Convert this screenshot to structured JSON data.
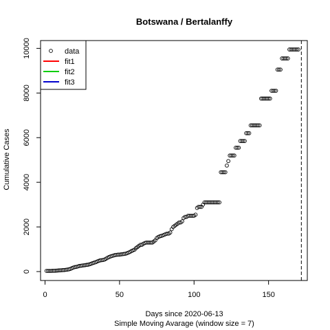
{
  "chart_data": {
    "type": "scatter",
    "title": "Botswana / Bertalanffy",
    "xlabel": "Days since 2020-06-13",
    "sublabel": "Simple Moving Avarage (window size = 7)",
    "ylabel": "Cumulative Cases",
    "xlim": [
      -3,
      176
    ],
    "ylim": [
      -400,
      10350
    ],
    "xticks": [
      0,
      50,
      100,
      150
    ],
    "yticks": [
      0,
      2000,
      4000,
      6000,
      8000,
      10000
    ],
    "vline_x": 172,
    "legend": {
      "position": "top-left",
      "entries": [
        {
          "label": "data",
          "kind": "point",
          "color": "#000000"
        },
        {
          "label": "fit1",
          "kind": "line",
          "color": "#ff0000"
        },
        {
          "label": "fit2",
          "kind": "line",
          "color": "#00cd00"
        },
        {
          "label": "fit3",
          "kind": "line",
          "color": "#0000cd"
        }
      ]
    },
    "series": [
      {
        "points": [
          [
            1,
            30
          ],
          [
            2,
            30
          ],
          [
            3,
            30
          ],
          [
            4,
            30
          ],
          [
            5,
            35
          ],
          [
            6,
            35
          ],
          [
            7,
            40
          ],
          [
            8,
            45
          ],
          [
            9,
            50
          ],
          [
            10,
            55
          ],
          [
            11,
            60
          ],
          [
            12,
            65
          ],
          [
            13,
            70
          ],
          [
            14,
            80
          ],
          [
            15,
            90
          ],
          [
            16,
            100
          ],
          [
            17,
            120
          ],
          [
            18,
            150
          ],
          [
            19,
            180
          ],
          [
            20,
            200
          ],
          [
            21,
            210
          ],
          [
            22,
            230
          ],
          [
            23,
            250
          ],
          [
            24,
            260
          ],
          [
            25,
            270
          ],
          [
            26,
            280
          ],
          [
            27,
            290
          ],
          [
            28,
            300
          ],
          [
            29,
            310
          ],
          [
            30,
            330
          ],
          [
            31,
            350
          ],
          [
            32,
            380
          ],
          [
            33,
            400
          ],
          [
            34,
            420
          ],
          [
            35,
            450
          ],
          [
            36,
            480
          ],
          [
            37,
            500
          ],
          [
            38,
            510
          ],
          [
            39,
            520
          ],
          [
            40,
            540
          ],
          [
            41,
            580
          ],
          [
            42,
            620
          ],
          [
            43,
            650
          ],
          [
            44,
            680
          ],
          [
            45,
            700
          ],
          [
            46,
            720
          ],
          [
            47,
            740
          ],
          [
            48,
            750
          ],
          [
            49,
            760
          ],
          [
            50,
            760
          ],
          [
            51,
            770
          ],
          [
            52,
            780
          ],
          [
            53,
            790
          ],
          [
            54,
            800
          ],
          [
            55,
            820
          ],
          [
            56,
            850
          ],
          [
            57,
            880
          ],
          [
            58,
            920
          ],
          [
            59,
            950
          ],
          [
            60,
            980
          ],
          [
            61,
            1050
          ],
          [
            62,
            1100
          ],
          [
            63,
            1150
          ],
          [
            64,
            1200
          ],
          [
            65,
            1200
          ],
          [
            66,
            1250
          ],
          [
            67,
            1280
          ],
          [
            68,
            1300
          ],
          [
            69,
            1300
          ],
          [
            70,
            1300
          ],
          [
            71,
            1300
          ],
          [
            72,
            1300
          ],
          [
            73,
            1350
          ],
          [
            74,
            1400
          ],
          [
            75,
            1500
          ],
          [
            76,
            1550
          ],
          [
            77,
            1580
          ],
          [
            78,
            1600
          ],
          [
            79,
            1620
          ],
          [
            80,
            1650
          ],
          [
            81,
            1680
          ],
          [
            82,
            1700
          ],
          [
            83,
            1700
          ],
          [
            84,
            1750
          ],
          [
            85,
            1900
          ],
          [
            86,
            2000
          ],
          [
            87,
            2050
          ],
          [
            88,
            2100
          ],
          [
            89,
            2150
          ],
          [
            90,
            2200
          ],
          [
            91,
            2200
          ],
          [
            92,
            2250
          ],
          [
            93,
            2400
          ],
          [
            94,
            2450
          ],
          [
            95,
            2450
          ],
          [
            96,
            2500
          ],
          [
            97,
            2500
          ],
          [
            98,
            2500
          ],
          [
            99,
            2500
          ],
          [
            100,
            2500
          ],
          [
            101,
            2550
          ],
          [
            102,
            2850
          ],
          [
            103,
            2900
          ],
          [
            104,
            2900
          ],
          [
            105,
            2900
          ],
          [
            106,
            3000
          ],
          [
            107,
            3100
          ],
          [
            108,
            3100
          ],
          [
            109,
            3100
          ],
          [
            110,
            3100
          ],
          [
            111,
            3100
          ],
          [
            112,
            3100
          ],
          [
            113,
            3100
          ],
          [
            114,
            3100
          ],
          [
            115,
            3100
          ],
          [
            116,
            3100
          ],
          [
            117,
            3100
          ],
          [
            118,
            4450
          ],
          [
            119,
            4450
          ],
          [
            120,
            4450
          ],
          [
            121,
            4450
          ],
          [
            122,
            4750
          ],
          [
            123,
            4950
          ],
          [
            124,
            5200
          ],
          [
            125,
            5200
          ],
          [
            126,
            5200
          ],
          [
            127,
            5200
          ],
          [
            128,
            5550
          ],
          [
            129,
            5550
          ],
          [
            130,
            5550
          ],
          [
            131,
            5850
          ],
          [
            132,
            5850
          ],
          [
            133,
            5850
          ],
          [
            134,
            5850
          ],
          [
            135,
            6200
          ],
          [
            136,
            6200
          ],
          [
            137,
            6200
          ],
          [
            138,
            6550
          ],
          [
            139,
            6550
          ],
          [
            140,
            6550
          ],
          [
            141,
            6550
          ],
          [
            142,
            6550
          ],
          [
            143,
            6550
          ],
          [
            144,
            6550
          ],
          [
            145,
            7750
          ],
          [
            146,
            7750
          ],
          [
            147,
            7750
          ],
          [
            148,
            7750
          ],
          [
            149,
            7750
          ],
          [
            150,
            7750
          ],
          [
            151,
            7750
          ],
          [
            152,
            8100
          ],
          [
            153,
            8100
          ],
          [
            154,
            8100
          ],
          [
            155,
            8100
          ],
          [
            156,
            9050
          ],
          [
            157,
            9050
          ],
          [
            158,
            9050
          ],
          [
            159,
            9550
          ],
          [
            160,
            9550
          ],
          [
            161,
            9550
          ],
          [
            162,
            9550
          ],
          [
            163,
            9550
          ],
          [
            164,
            9950
          ],
          [
            165,
            9950
          ],
          [
            166,
            9950
          ],
          [
            167,
            9950
          ],
          [
            168,
            9950
          ],
          [
            169,
            9950
          ],
          [
            170,
            9950
          ]
        ]
      }
    ]
  }
}
